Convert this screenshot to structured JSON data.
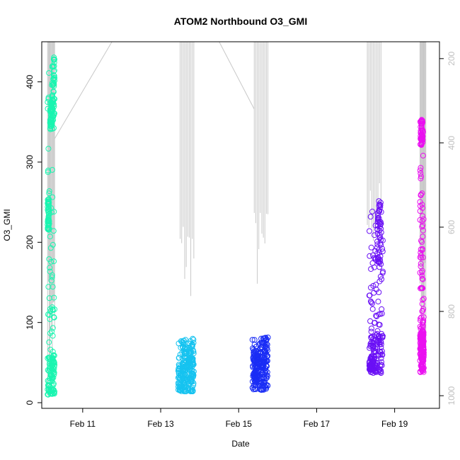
{
  "chart_data": {
    "type": "scatter",
    "title": "ATOM2 Northbound O3_GMI",
    "xlabel": "Date",
    "ylabel": "O3_GMI",
    "y_left_ticks": [
      "0",
      "100",
      "200",
      "300",
      "400"
    ],
    "y_left_range": [
      0,
      450
    ],
    "y_right_ticks": [
      "200",
      "400",
      "600",
      "800",
      "1000"
    ],
    "y_right_range": [
      1030,
      160
    ],
    "y_right_inverted": true,
    "x_ticks": [
      "Feb 11",
      "Feb 13",
      "Feb 15",
      "Feb 17",
      "Feb 19"
    ],
    "x_tick_days": [
      11,
      13,
      15,
      17,
      19
    ],
    "x_range_days": [
      9.95,
      20.15
    ],
    "grid": false,
    "legend": "none",
    "pressure_color": "#c8c8c8",
    "series": [
      {
        "color": "#19f5b0",
        "day_start": 10.1,
        "day_end": 10.28,
        "o3_min": 10,
        "o3_max": 432,
        "clusters": [
          [
            10.1,
            10.14,
            215,
            255
          ],
          [
            10.16,
            10.22,
            340,
            380
          ],
          [
            10.22,
            10.28,
            355,
            432
          ]
        ]
      },
      {
        "color": "#16c3f0",
        "day_start": 13.45,
        "day_end": 13.85,
        "o3_min": 14,
        "o3_max": 80,
        "clusters": [
          [
            13.55,
            13.65,
            20,
            78
          ],
          [
            13.7,
            13.85,
            25,
            80
          ]
        ]
      },
      {
        "color": "#1a2df5",
        "day_start": 15.35,
        "day_end": 15.75,
        "o3_min": 16,
        "o3_max": 82,
        "clusters": [
          [
            15.4,
            15.5,
            30,
            60
          ],
          [
            15.55,
            15.75,
            35,
            82
          ]
        ]
      },
      {
        "color": "#6a10f5",
        "day_start": 18.35,
        "day_end": 18.7,
        "o3_min": 37,
        "o3_max": 252,
        "clusters": [
          [
            18.35,
            18.45,
            40,
            58
          ],
          [
            18.55,
            18.65,
            165,
            252
          ]
        ]
      },
      {
        "color": "#ea10f0",
        "day_start": 19.65,
        "day_end": 19.75,
        "o3_min": 38,
        "o3_max": 353,
        "clusters": [
          [
            19.66,
            19.74,
            320,
            353
          ],
          [
            19.66,
            19.74,
            40,
            110
          ]
        ]
      }
    ],
    "pressure_profiles": [
      {
        "day_start": 10.1,
        "day_end": 10.28,
        "p_min": 160,
        "p_max": 1000
      },
      {
        "day_start": 13.5,
        "day_end": 13.85,
        "p_min": 160,
        "p_max": 775
      },
      {
        "day_start": 15.4,
        "day_end": 15.75,
        "p_min": 160,
        "p_max": 760
      },
      {
        "day_start": 18.3,
        "day_end": 18.65,
        "p_min": 160,
        "p_max": 660
      },
      {
        "day_start": 19.65,
        "day_end": 19.8,
        "p_min": 160,
        "p_max": 930
      }
    ],
    "pressure_transits": [
      [
        10.28,
        390,
        11.75,
        160
      ],
      [
        14.5,
        160,
        15.4,
        320
      ]
    ]
  }
}
